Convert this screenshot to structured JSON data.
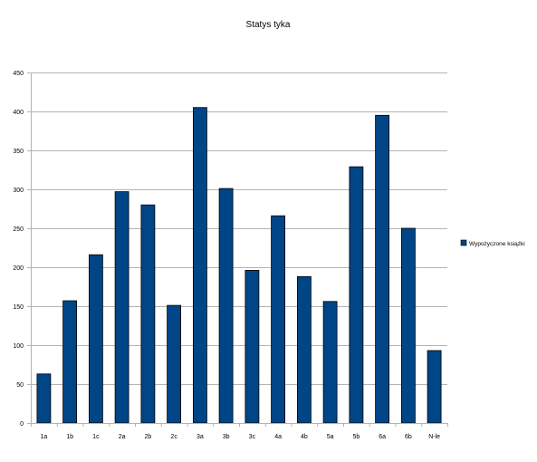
{
  "chart_data": {
    "type": "bar",
    "title": "Statys tyka",
    "xlabel": "",
    "ylabel": "",
    "categories": [
      "1a",
      "1b",
      "1c",
      "2a",
      "2b",
      "2c",
      "3a",
      "3b",
      "3c",
      "4a",
      "4b",
      "5a",
      "5b",
      "6a",
      "6b",
      "N-le"
    ],
    "series": [
      {
        "name": "Wypożyczone książki",
        "values": [
          63,
          157,
          216,
          297,
          280,
          151,
          405,
          301,
          196,
          266,
          188,
          156,
          329,
          395,
          250,
          93
        ],
        "color": "#004586"
      }
    ],
    "ylim": [
      0,
      450
    ],
    "yticks": [
      "0",
      "50",
      "100",
      "150",
      "200",
      "250",
      "300",
      "350",
      "400",
      "450"
    ],
    "grid": true,
    "legend_position": "right"
  }
}
